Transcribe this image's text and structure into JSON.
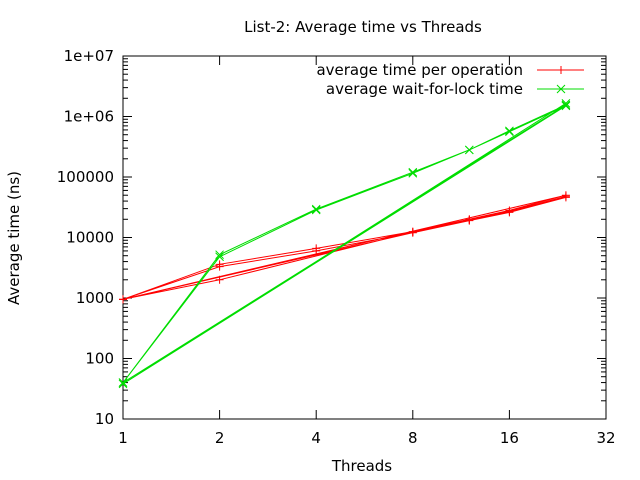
{
  "chart_data": {
    "type": "line",
    "title": "List-2: Average time  vs Threads",
    "xlabel": "Threads",
    "ylabel": "Average time (ns)",
    "x_scale": "log2",
    "y_scale": "log10",
    "xlim": [
      1,
      32
    ],
    "ylim": [
      10,
      10000000
    ],
    "x_ticks": [
      1,
      2,
      4,
      8,
      16,
      32
    ],
    "x_tick_labels": [
      "1",
      "2",
      "4",
      "8",
      "16",
      "32"
    ],
    "y_ticks": [
      10,
      100,
      1000,
      10000,
      100000,
      1000000,
      10000000
    ],
    "y_tick_labels": [
      "10",
      "100",
      "1000",
      "10000",
      "100000",
      "1e+06",
      "1e+07"
    ],
    "grid": false,
    "legend_position": "top-right",
    "series": [
      {
        "name": "average time per operation",
        "color": "#ff0000",
        "marker": "plus",
        "x": [
          1,
          2,
          4,
          8,
          12,
          16,
          24,
          1,
          2,
          4,
          8,
          12,
          16,
          24,
          1,
          2,
          8,
          12,
          16,
          24
        ],
        "y": [
          950,
          3600,
          6600,
          12500,
          20000,
          28000,
          50000,
          950,
          3300,
          6000,
          12000,
          19000,
          26000,
          46000,
          950,
          2000,
          12300,
          19500,
          27000,
          48000
        ]
      },
      {
        "name": "average wait-for-lock time",
        "color": "#00dd00",
        "marker": "cross",
        "x": [
          1,
          2,
          4,
          8,
          12,
          16,
          24,
          1,
          2,
          4,
          8,
          12,
          16,
          24,
          1,
          24
        ],
        "y": [
          40,
          5200,
          29500,
          120000,
          280000,
          580000,
          1550000,
          40,
          4800,
          28500,
          115000,
          280000,
          560000,
          1500000,
          38,
          1650000
        ]
      }
    ]
  }
}
